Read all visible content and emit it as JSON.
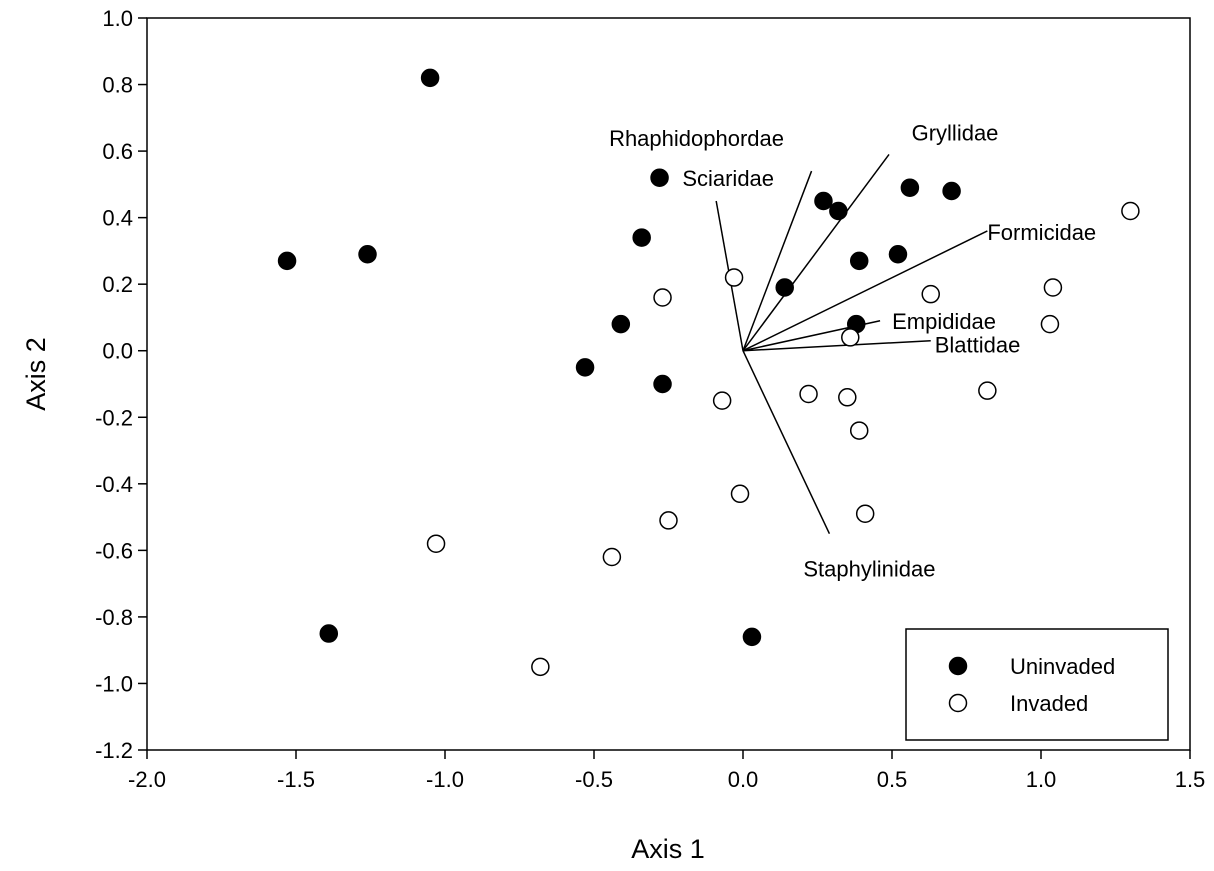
{
  "chart_data": {
    "type": "scatter",
    "title": "",
    "xlabel": "Axis 1",
    "ylabel": "Axis 2",
    "xlim": [
      -2.0,
      1.5
    ],
    "ylim": [
      -1.2,
      1.0
    ],
    "x_ticks": [
      -2.0,
      -1.5,
      -1.0,
      -0.5,
      0.0,
      0.5,
      1.0,
      1.5
    ],
    "x_tick_labels": [
      "-2.0",
      "-1.5",
      "-1.0",
      "-0.5",
      "0.0",
      "0.5",
      "1.0",
      "1.5"
    ],
    "y_ticks": [
      -1.2,
      -1.0,
      -0.8,
      -0.6,
      -0.4,
      -0.2,
      0.0,
      0.2,
      0.4,
      0.6,
      0.8,
      1.0
    ],
    "y_tick_labels": [
      "-1.2",
      "-1.0",
      "-0.8",
      "-0.6",
      "-0.4",
      "-0.2",
      "0.0",
      "0.2",
      "0.4",
      "0.6",
      "0.8",
      "1.0"
    ],
    "grid": false,
    "legend_position": "bottom-right",
    "series": [
      {
        "name": "Uninvaded",
        "marker": "filled-circle",
        "color": "#000000",
        "points": [
          [
            -1.05,
            0.82
          ],
          [
            -1.53,
            0.27
          ],
          [
            -1.26,
            0.29
          ],
          [
            -1.39,
            -0.85
          ],
          [
            -0.28,
            0.52
          ],
          [
            -0.34,
            0.34
          ],
          [
            -0.41,
            0.08
          ],
          [
            -0.53,
            -0.05
          ],
          [
            -0.27,
            -0.1
          ],
          [
            0.03,
            -0.86
          ],
          [
            0.14,
            0.19
          ],
          [
            0.27,
            0.45
          ],
          [
            0.32,
            0.42
          ],
          [
            0.39,
            0.27
          ],
          [
            0.52,
            0.29
          ],
          [
            0.56,
            0.49
          ],
          [
            0.7,
            0.48
          ],
          [
            0.38,
            0.08
          ]
        ]
      },
      {
        "name": "Invaded",
        "marker": "open-circle",
        "color": "#000000",
        "points": [
          [
            1.3,
            0.42
          ],
          [
            1.04,
            0.19
          ],
          [
            1.03,
            0.08
          ],
          [
            0.82,
            -0.12
          ],
          [
            0.63,
            0.17
          ],
          [
            0.36,
            0.04
          ],
          [
            0.35,
            -0.14
          ],
          [
            0.39,
            -0.24
          ],
          [
            0.22,
            -0.13
          ],
          [
            -0.03,
            0.22
          ],
          [
            -0.27,
            0.16
          ],
          [
            -0.07,
            -0.15
          ],
          [
            -0.01,
            -0.43
          ],
          [
            -0.25,
            -0.51
          ],
          [
            -0.44,
            -0.62
          ],
          [
            0.41,
            -0.49
          ],
          [
            -1.03,
            -0.58
          ],
          [
            -0.68,
            -0.95
          ]
        ]
      }
    ],
    "vectors": [
      {
        "label": "Rhaphidophordae",
        "end": [
          0.23,
          0.54
        ]
      },
      {
        "label": "Gryllidae",
        "end": [
          0.49,
          0.59
        ]
      },
      {
        "label": "Sciaridae",
        "end": [
          -0.09,
          0.45
        ]
      },
      {
        "label": "Formicidae",
        "end": [
          0.82,
          0.36
        ]
      },
      {
        "label": "Empididae",
        "end": [
          0.46,
          0.09
        ]
      },
      {
        "label": "Blattidae",
        "end": [
          0.63,
          0.03
        ]
      },
      {
        "label": "Staphylinidae",
        "end": [
          0.29,
          -0.55
        ]
      }
    ]
  }
}
